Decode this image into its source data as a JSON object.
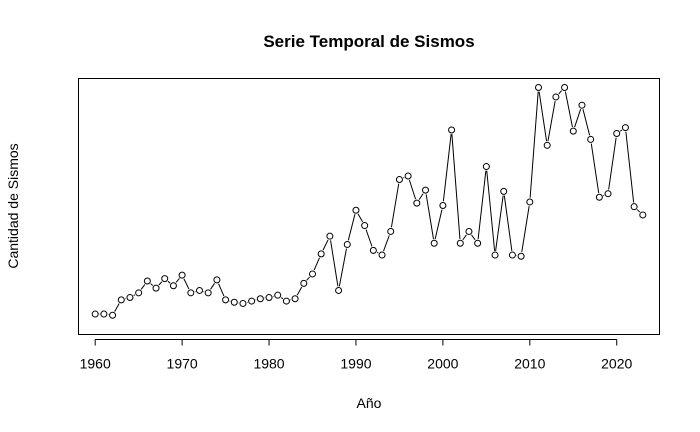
{
  "chart_data": {
    "type": "line",
    "title": "Serie Temporal de Sismos",
    "xlabel": "Año",
    "ylabel": "Cantidad de Sismos",
    "x_ticks": [
      1960,
      1970,
      1980,
      1990,
      2000,
      2010,
      2020
    ],
    "xlim": [
      1958.08,
      2024.92
    ],
    "ylim": [
      0,
      100
    ],
    "y_ticks_shown": false,
    "grid": false,
    "markers": "open-circle",
    "x": [
      1960,
      1961,
      1962,
      1963,
      1964,
      1965,
      1966,
      1967,
      1968,
      1969,
      1970,
      1971,
      1972,
      1973,
      1974,
      1975,
      1976,
      1977,
      1978,
      1979,
      1980,
      1981,
      1982,
      1983,
      1984,
      1985,
      1986,
      1987,
      1988,
      1989,
      1990,
      1991,
      1992,
      1993,
      1994,
      1995,
      1996,
      1997,
      1998,
      1999,
      2000,
      2001,
      2002,
      2003,
      2004,
      2005,
      2006,
      2007,
      2008,
      2009,
      2010,
      2011,
      2012,
      2013,
      2014,
      2015,
      2016,
      2017,
      2018,
      2019,
      2020,
      2021,
      2022,
      2023
    ],
    "values": [
      4.0,
      4.0,
      3.5,
      10.0,
      11.0,
      13.0,
      18.0,
      15.0,
      19.0,
      16.0,
      20.5,
      13.0,
      14.0,
      13.0,
      18.5,
      10.0,
      9.0,
      8.5,
      9.5,
      10.5,
      11.0,
      12.0,
      9.5,
      10.5,
      17.0,
      21.0,
      29.5,
      37.0,
      14.0,
      33.5,
      48.0,
      41.5,
      31.0,
      29.0,
      39.0,
      61.0,
      62.5,
      51.0,
      56.5,
      34.0,
      50.0,
      82.0,
      34.0,
      39.0,
      34.0,
      66.5,
      29.0,
      56.0,
      29.0,
      28.5,
      51.5,
      100.0,
      75.5,
      96.0,
      100.0,
      81.5,
      92.5,
      78.0,
      53.5,
      55.0,
      80.5,
      83.0,
      49.5,
      46.0
    ]
  }
}
